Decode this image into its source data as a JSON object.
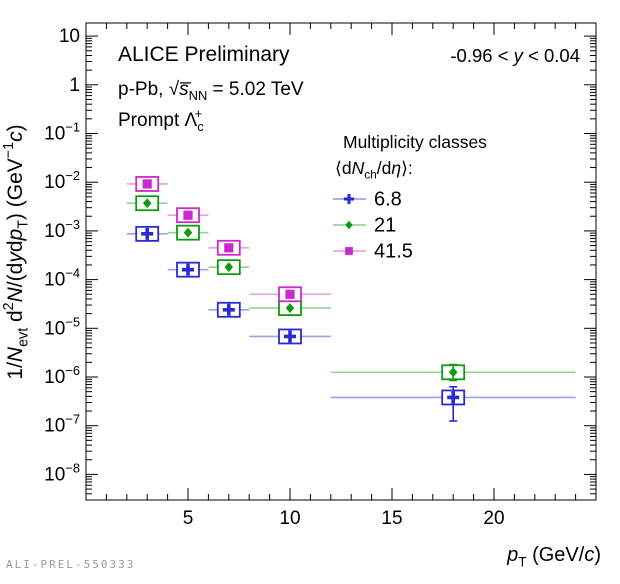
{
  "chart_data": {
    "type": "scatter",
    "title": "ALICE Preliminary",
    "subtitle_segments": [
      {
        "t": "p-Pb, "
      },
      {
        "t": "√"
      },
      {
        "t": "s̅",
        "i": 1
      },
      {
        "t": "NN",
        "sub": 1
      },
      {
        "t": " = 5.02 TeV"
      }
    ],
    "particle_segments": [
      {
        "t": "Prompt Λ"
      },
      {
        "t": "c",
        "sub": 1
      },
      {
        "t": "+",
        "sup": 1,
        "dx": -9
      }
    ],
    "rapidity_segments": [
      {
        "t": "-0.96 < "
      },
      {
        "t": "y",
        "i": 1
      },
      {
        "t": " < 0.04"
      }
    ],
    "xlabel_segments": [
      {
        "t": "p",
        "i": 1
      },
      {
        "t": "T",
        "sub": 1
      },
      {
        "t": " (GeV/"
      },
      {
        "t": "c",
        "i": 1
      },
      {
        "t": ")"
      }
    ],
    "ylabel_segments": [
      {
        "t": "1/"
      },
      {
        "t": "N",
        "i": 1
      },
      {
        "t": "evt",
        "sub": 1
      },
      {
        "t": " d"
      },
      {
        "t": "2",
        "sup": 1
      },
      {
        "t": "N",
        "i": 1
      },
      {
        "t": "/(d"
      },
      {
        "t": "y",
        "i": 1
      },
      {
        "t": "d"
      },
      {
        "t": "p",
        "i": 1
      },
      {
        "t": "T",
        "sub": 1
      },
      {
        "t": ") (GeV"
      },
      {
        "t": "−1",
        "sup": 1
      },
      {
        "t": "c",
        "i": 1
      },
      {
        "t": ")"
      }
    ],
    "xlim": [
      0,
      25
    ],
    "x_major_ticks": [
      5,
      10,
      15,
      20
    ],
    "x_minor_step": 1,
    "y_exponent_ticks": [
      1,
      0,
      -1,
      -2,
      -3,
      -4,
      -5,
      -6,
      -7,
      -8
    ],
    "grid": false,
    "legend": {
      "position": "upper-right",
      "title_line1": "Multiplicity classes",
      "title_line2_segments": [
        {
          "t": "⟨d"
        },
        {
          "t": "N",
          "i": 1
        },
        {
          "t": "ch",
          "sub": 1
        },
        {
          "t": "/d"
        },
        {
          "t": "η",
          "i": 1
        },
        {
          "t": "⟩:"
        }
      ]
    },
    "bins": [
      {
        "lo": 2,
        "hi": 4,
        "center": 3
      },
      {
        "lo": 4,
        "hi": 6,
        "center": 5
      },
      {
        "lo": 6,
        "hi": 8,
        "center": 7
      },
      {
        "lo": 8,
        "hi": 12,
        "center": 10
      },
      {
        "lo": 12,
        "hi": 24,
        "center": 18
      }
    ],
    "series": [
      {
        "name": "6.8",
        "color": "#2a2ad4",
        "marker": "cross",
        "values": [
          0.00087,
          0.00016,
          2.4e-05,
          6.8e-06,
          3.8e-07
        ],
        "err_hi": [
          null,
          null,
          null,
          null,
          6.3e-07
        ],
        "err_lo": [
          null,
          null,
          null,
          null,
          1.25e-07
        ]
      },
      {
        "name": "21",
        "color": "#0f9b0f",
        "marker": "diamond",
        "values": [
          0.0037,
          0.00092,
          0.00018,
          2.6e-05,
          1.25e-06
        ],
        "err_hi": [
          null,
          null,
          null,
          null,
          1.8e-06
        ],
        "err_lo": [
          null,
          null,
          null,
          null,
          8.5e-07
        ]
      },
      {
        "name": "41.5",
        "color": "#cc29cc",
        "marker": "square",
        "values": [
          0.0092,
          0.0021,
          0.00045,
          5e-05,
          null
        ],
        "err_hi": [
          null,
          null,
          null,
          null,
          null
        ],
        "err_lo": [
          null,
          null,
          null,
          null,
          null
        ]
      }
    ],
    "watermark": "ALI-PREL-550333"
  }
}
